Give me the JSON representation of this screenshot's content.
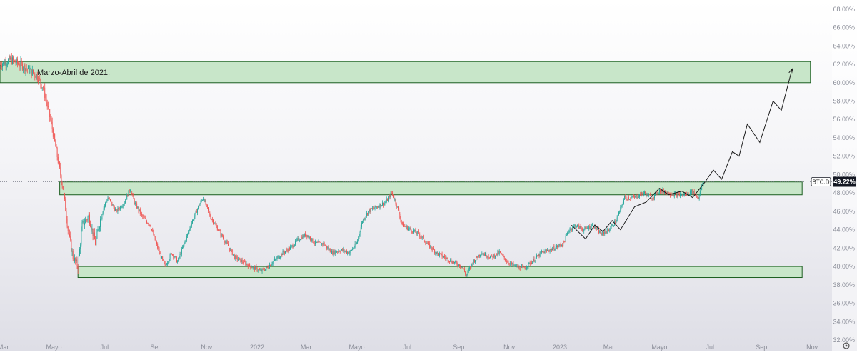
{
  "chart_data": {
    "type": "candlestick",
    "symbol": "BTC.D",
    "last_value": 49.22,
    "last_value_label": "49.22%",
    "y_range": [
      32,
      69
    ],
    "y_ticks": [
      "68.00%",
      "66.00%",
      "64.00%",
      "62.00%",
      "60.00%",
      "58.00%",
      "56.00%",
      "54.00%",
      "52.00%",
      "50.00%",
      "48.00%",
      "46.00%",
      "44.00%",
      "42.00%",
      "40.00%",
      "38.00%",
      "36.00%",
      "34.00%",
      "32.00%"
    ],
    "y_tick_values": [
      68,
      66,
      64,
      62,
      60,
      58,
      56,
      54,
      52,
      50,
      48,
      46,
      44,
      42,
      40,
      38,
      36,
      34,
      32
    ],
    "x_labels": [
      "Mar",
      "Mayo",
      "Jul",
      "Sep",
      "Nov",
      "2022",
      "Mar",
      "Mayo",
      "Jul",
      "Sep",
      "Nov",
      "2023",
      "Mar",
      "Mayo",
      "Jul",
      "Sep",
      "Nov"
    ],
    "x_range": [
      "2021-02-25",
      "2023-11-25"
    ],
    "x_label_dates": [
      "2021-03-01",
      "2021-05-01",
      "2021-07-01",
      "2021-09-01",
      "2021-11-01",
      "2022-01-01",
      "2022-03-01",
      "2022-05-01",
      "2022-07-01",
      "2022-09-01",
      "2022-11-01",
      "2023-01-01",
      "2023-03-01",
      "2023-05-01",
      "2023-07-01",
      "2023-09-01",
      "2023-11-01"
    ],
    "series": [
      {
        "name": "BTC.D",
        "points": [
          [
            "2021-02-25",
            62.0
          ],
          [
            "2021-03-10",
            62.5
          ],
          [
            "2021-03-25",
            61.8
          ],
          [
            "2021-04-10",
            60.8
          ],
          [
            "2021-04-18",
            59.5
          ],
          [
            "2021-04-28",
            55.5
          ],
          [
            "2021-05-05",
            52.0
          ],
          [
            "2021-05-12",
            48.5
          ],
          [
            "2021-05-18",
            44.0
          ],
          [
            "2021-05-24",
            41.0
          ],
          [
            "2021-05-30",
            40.0
          ],
          [
            "2021-06-04",
            44.5
          ],
          [
            "2021-06-12",
            45.5
          ],
          [
            "2021-06-20",
            42.5
          ],
          [
            "2021-06-28",
            46.0
          ],
          [
            "2021-07-05",
            47.5
          ],
          [
            "2021-07-15",
            46.0
          ],
          [
            "2021-07-25",
            47.0
          ],
          [
            "2021-08-01",
            48.5
          ],
          [
            "2021-08-06",
            47.0
          ],
          [
            "2021-08-15",
            45.5
          ],
          [
            "2021-08-25",
            44.5
          ],
          [
            "2021-09-05",
            41.5
          ],
          [
            "2021-09-12",
            40.0
          ],
          [
            "2021-09-20",
            41.5
          ],
          [
            "2021-09-27",
            40.5
          ],
          [
            "2021-10-05",
            42.5
          ],
          [
            "2021-10-15",
            45.0
          ],
          [
            "2021-10-22",
            46.5
          ],
          [
            "2021-10-28",
            47.5
          ],
          [
            "2021-11-05",
            45.5
          ],
          [
            "2021-11-15",
            44.0
          ],
          [
            "2021-11-25",
            42.5
          ],
          [
            "2021-12-05",
            41.0
          ],
          [
            "2021-12-15",
            40.5
          ],
          [
            "2021-12-25",
            40.0
          ],
          [
            "2022-01-05",
            39.5
          ],
          [
            "2022-01-12",
            39.8
          ],
          [
            "2022-01-20",
            40.5
          ],
          [
            "2022-02-01",
            41.5
          ],
          [
            "2022-02-10",
            42.0
          ],
          [
            "2022-02-20",
            43.0
          ],
          [
            "2022-03-01",
            43.5
          ],
          [
            "2022-03-12",
            42.5
          ],
          [
            "2022-03-22",
            42.5
          ],
          [
            "2022-04-01",
            41.5
          ],
          [
            "2022-04-12",
            41.8
          ],
          [
            "2022-04-22",
            41.5
          ],
          [
            "2022-05-01",
            42.5
          ],
          [
            "2022-05-08",
            45.0
          ],
          [
            "2022-05-15",
            46.0
          ],
          [
            "2022-05-25",
            46.5
          ],
          [
            "2022-06-05",
            47.0
          ],
          [
            "2022-06-12",
            48.0
          ],
          [
            "2022-06-17",
            47.0
          ],
          [
            "2022-06-25",
            44.5
          ],
          [
            "2022-07-05",
            44.0
          ],
          [
            "2022-07-15",
            43.5
          ],
          [
            "2022-07-25",
            42.5
          ],
          [
            "2022-08-05",
            41.5
          ],
          [
            "2022-08-15",
            41.0
          ],
          [
            "2022-08-25",
            40.5
          ],
          [
            "2022-09-05",
            40.0
          ],
          [
            "2022-09-10",
            39.0
          ],
          [
            "2022-09-18",
            40.5
          ],
          [
            "2022-09-28",
            41.5
          ],
          [
            "2022-10-10",
            41.0
          ],
          [
            "2022-10-20",
            41.5
          ],
          [
            "2022-10-30",
            40.5
          ],
          [
            "2022-11-08",
            40.0
          ],
          [
            "2022-11-18",
            39.8
          ],
          [
            "2022-11-28",
            40.5
          ],
          [
            "2022-12-10",
            41.5
          ],
          [
            "2022-12-25",
            42.0
          ],
          [
            "2023-01-05",
            42.5
          ],
          [
            "2023-01-12",
            44.0
          ],
          [
            "2023-01-20",
            44.5
          ],
          [
            "2023-01-30",
            44.0
          ],
          [
            "2023-02-10",
            44.5
          ],
          [
            "2023-02-20",
            43.5
          ],
          [
            "2023-03-01",
            44.0
          ],
          [
            "2023-03-10",
            45.0
          ],
          [
            "2023-03-20",
            47.5
          ],
          [
            "2023-04-01",
            47.5
          ],
          [
            "2023-04-12",
            48.0
          ],
          [
            "2023-04-22",
            47.5
          ],
          [
            "2023-05-01",
            48.3
          ],
          [
            "2023-05-12",
            48.0
          ],
          [
            "2023-05-22",
            47.8
          ],
          [
            "2023-06-01",
            47.8
          ],
          [
            "2023-06-10",
            48.2
          ],
          [
            "2023-06-17",
            47.5
          ],
          [
            "2023-06-23",
            49.22
          ]
        ]
      }
    ],
    "projection_path": [
      [
        "2023-01-15",
        44.5
      ],
      [
        "2023-02-01",
        43.0
      ],
      [
        "2023-02-12",
        44.5
      ],
      [
        "2023-02-22",
        43.8
      ],
      [
        "2023-03-05",
        45.0
      ],
      [
        "2023-03-15",
        44.0
      ],
      [
        "2023-04-01",
        46.5
      ],
      [
        "2023-04-15",
        47.0
      ],
      [
        "2023-05-01",
        48.5
      ],
      [
        "2023-05-12",
        47.8
      ],
      [
        "2023-05-28",
        48.2
      ],
      [
        "2023-06-10",
        47.5
      ],
      [
        "2023-06-25",
        49.2
      ],
      [
        "2023-07-05",
        50.5
      ],
      [
        "2023-07-15",
        49.5
      ],
      [
        "2023-07-28",
        52.5
      ],
      [
        "2023-08-05",
        52.0
      ],
      [
        "2023-08-15",
        55.5
      ],
      [
        "2023-08-30",
        53.5
      ],
      [
        "2023-09-15",
        58.0
      ],
      [
        "2023-09-25",
        57.0
      ],
      [
        "2023-10-08",
        61.5
      ]
    ],
    "zones": [
      {
        "label": "Marzo-Abril de 2021.",
        "x_start": "2021-02-25",
        "x_end": "2023-10-30",
        "y_low": 60.0,
        "y_high": 62.3
      },
      {
        "label": "",
        "x_start": "2021-05-08",
        "x_end": "2023-10-20",
        "y_low": 47.8,
        "y_high": 49.2
      },
      {
        "label": "",
        "x_start": "2021-05-30",
        "x_end": "2023-10-20",
        "y_low": 38.8,
        "y_high": 40.0
      }
    ],
    "colors": {
      "up": "#26a69a",
      "down": "#ef5350",
      "zone_fill": "#c8e6c9",
      "zone_border": "#1b5e20",
      "projection": "#1a1a1a",
      "badge": "#131722"
    },
    "grid": false
  }
}
